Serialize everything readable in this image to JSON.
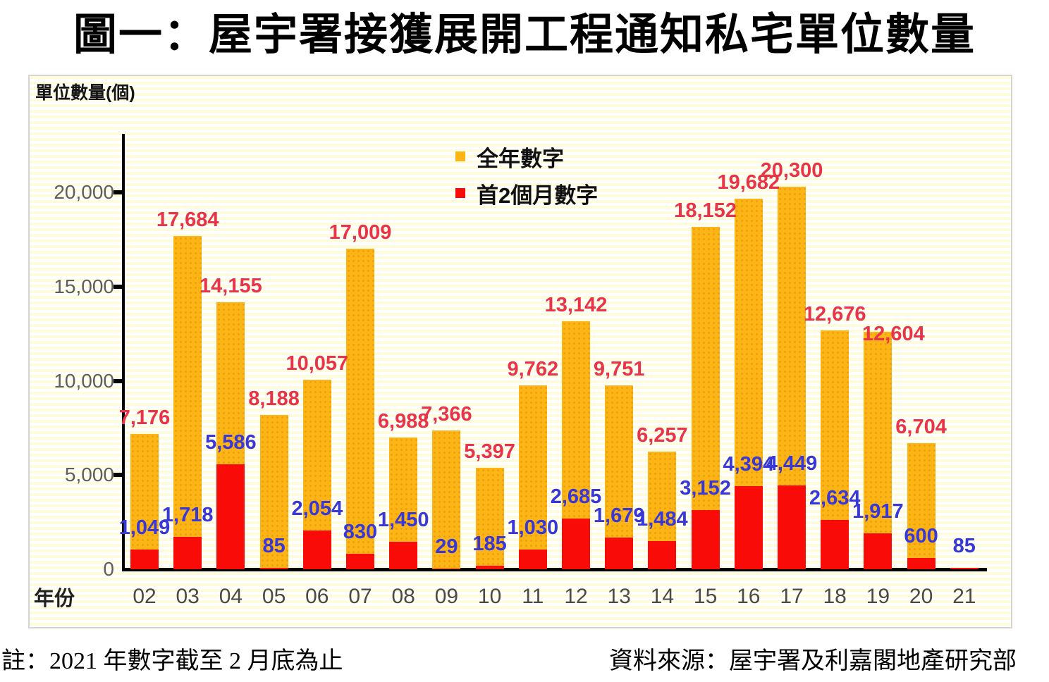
{
  "title": "圖一：屋宇署接獲展開工程通知私宅單位數量",
  "footnote": "註：2021 年數字截至 2 月底為止",
  "source": "資料來源：屋宇署及利嘉閣地產研究部",
  "chart_data": {
    "type": "bar",
    "title": "圖一：屋宇署接獲展開工程通知私宅單位數量",
    "ylabel": "單位數量(個)",
    "xlabel": "年份",
    "ylim": [
      0,
      21000
    ],
    "yticks": [
      0,
      5000,
      10000,
      15000,
      20000
    ],
    "ytick_labels": [
      "0",
      "5,000",
      "10,000",
      "15,000",
      "20,000"
    ],
    "grid": false,
    "legend_position": "inside-top-center",
    "background_stripes": [
      "#fffcdd",
      "#ffffff"
    ],
    "categories": [
      "02",
      "03",
      "04",
      "05",
      "06",
      "07",
      "08",
      "09",
      "10",
      "11",
      "12",
      "13",
      "14",
      "15",
      "16",
      "17",
      "18",
      "19",
      "20",
      "21"
    ],
    "series": [
      {
        "name": "全年數字",
        "bar_color": "#fcb514",
        "label_color": "#e93348",
        "values": [
          7176,
          17684,
          14155,
          8188,
          10057,
          17009,
          6988,
          7366,
          5397,
          9762,
          13142,
          9751,
          6257,
          18152,
          19682,
          20300,
          12676,
          12604,
          6704,
          null
        ]
      },
      {
        "name": "首2個月數字",
        "bar_color": "#f90b07",
        "label_color": "#3838d8",
        "values": [
          1049,
          1718,
          5586,
          85,
          2054,
          830,
          1450,
          29,
          185,
          1030,
          2685,
          1679,
          1484,
          3152,
          4394,
          4449,
          2634,
          1917,
          600,
          85
        ]
      }
    ],
    "layout_hints": {
      "label_offsets": {
        "0": {
          "17": [
            22,
            26
          ]
        }
      }
    }
  }
}
